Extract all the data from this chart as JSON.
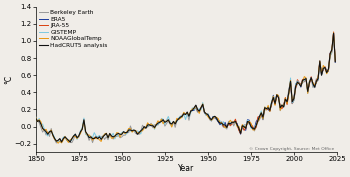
{
  "title": "",
  "xlabel": "Year",
  "ylabel": "°C",
  "xlim": [
    1850,
    2025
  ],
  "ylim": [
    -0.3,
    1.4
  ],
  "yticks": [
    -0.2,
    0.0,
    0.2,
    0.4,
    0.6,
    0.8,
    1.0,
    1.2,
    1.4
  ],
  "xticks": [
    1850,
    1875,
    1900,
    1925,
    1950,
    1975,
    2000,
    2025
  ],
  "legend_labels": [
    "HadCRUT5 analysis",
    "NOAAGlobalTemp",
    "GISTEMP",
    "ERA5",
    "JRA-55",
    "Berkeley Earth"
  ],
  "line_colors": [
    "#111111",
    "#e8960f",
    "#7cc8e0",
    "#1a3a9c",
    "#d94010",
    "#999999"
  ],
  "line_widths": [
    0.8,
    0.7,
    0.7,
    0.7,
    0.7,
    0.7
  ],
  "copyright": "© Crown Copyright, Source: Met Office",
  "background_color": "#f0ede8"
}
